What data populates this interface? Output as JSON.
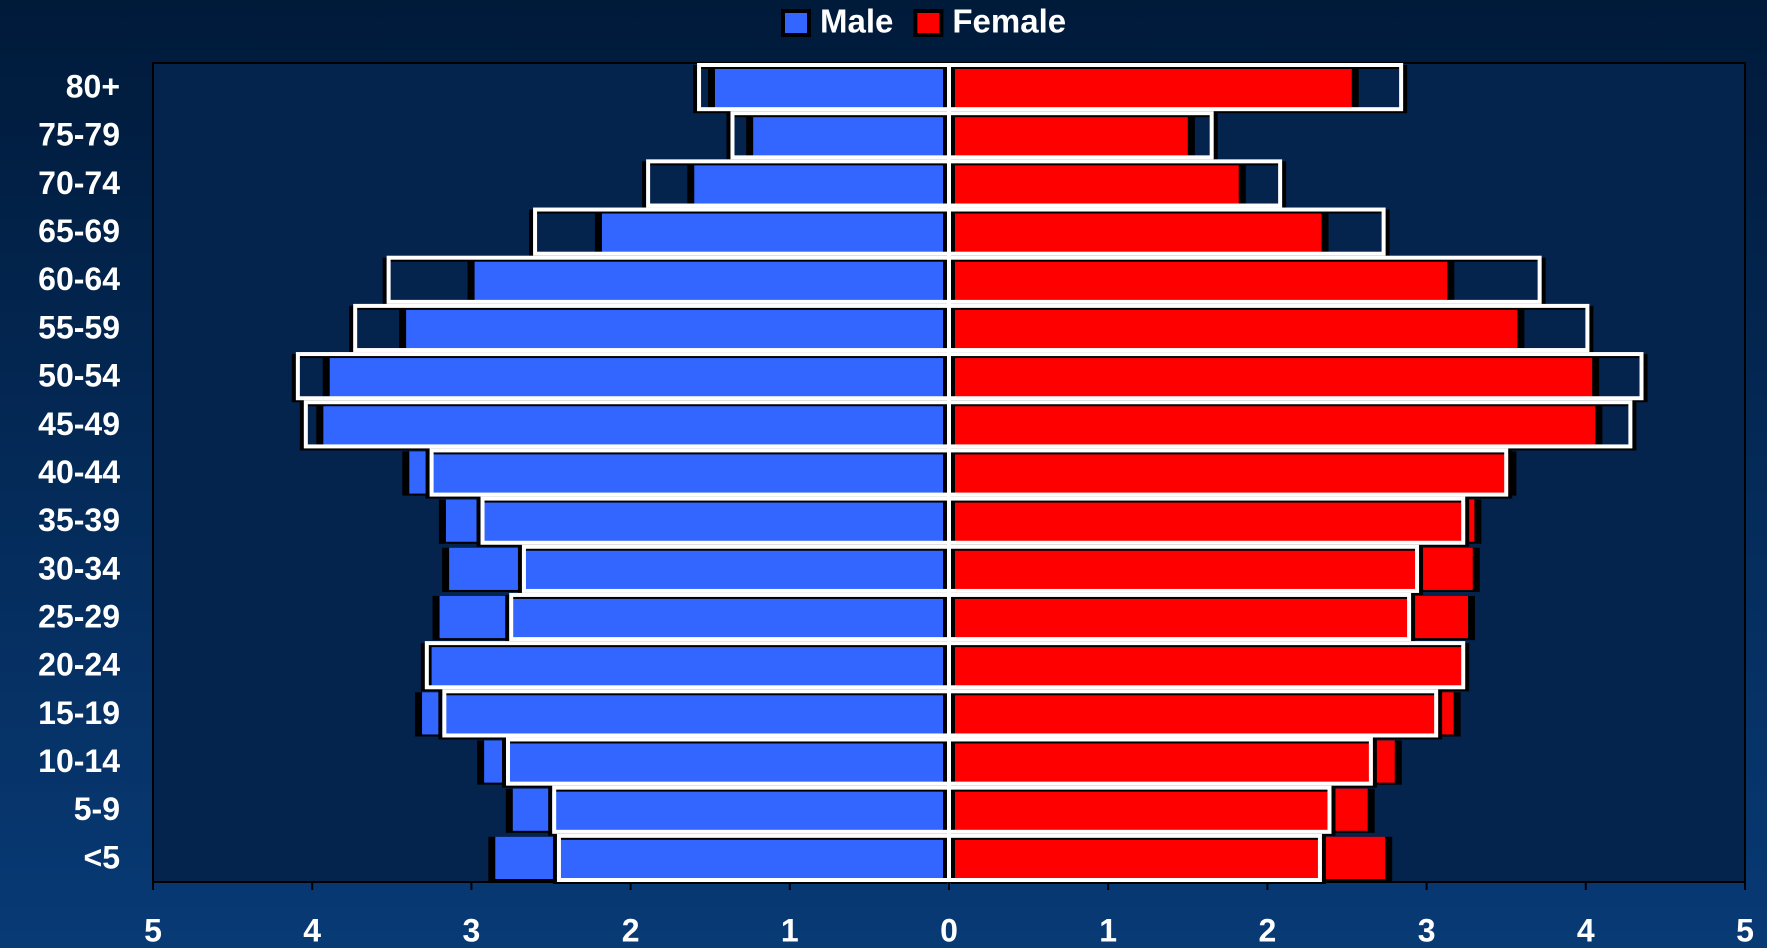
{
  "chart_data": {
    "type": "pyramid",
    "categories": [
      "80+",
      "75-79",
      "70-74",
      "65-69",
      "60-64",
      "55-59",
      "50-54",
      "45-49",
      "40-44",
      "35-39",
      "30-34",
      "25-29",
      "20-24",
      "15-19",
      "10-14",
      "5-9",
      "<5"
    ],
    "series": [
      {
        "name": "Male",
        "color": "#3366ff",
        "side": "left",
        "values": [
          1.47,
          1.23,
          1.6,
          2.18,
          2.98,
          3.41,
          3.89,
          3.93,
          3.39,
          3.16,
          3.14,
          3.2,
          3.25,
          3.31,
          2.92,
          2.74,
          2.85
        ],
        "outline_values": [
          1.57,
          1.36,
          1.89,
          2.6,
          3.52,
          3.73,
          4.09,
          4.04,
          3.25,
          2.93,
          2.67,
          2.75,
          3.28,
          3.17,
          2.77,
          2.48,
          2.45
        ]
      },
      {
        "name": "Female",
        "color": "#ff0000",
        "side": "right",
        "values": [
          2.53,
          1.5,
          1.82,
          2.34,
          3.13,
          3.57,
          4.04,
          4.06,
          3.52,
          3.3,
          3.29,
          3.26,
          3.22,
          3.17,
          2.8,
          2.63,
          2.74
        ],
        "outline_values": [
          2.84,
          1.65,
          2.08,
          2.73,
          3.71,
          4.01,
          4.35,
          4.28,
          3.5,
          3.23,
          2.94,
          2.89,
          3.23,
          3.06,
          2.65,
          2.39,
          2.33
        ]
      }
    ],
    "xlim": [
      -5,
      5
    ],
    "xticks": [
      {
        "value": -5,
        "label": "5"
      },
      {
        "value": -4,
        "label": "4"
      },
      {
        "value": -3,
        "label": "3"
      },
      {
        "value": -2,
        "label": "2"
      },
      {
        "value": -1,
        "label": "1"
      },
      0,
      1,
      2,
      3,
      4,
      5
    ],
    "legend": "top"
  }
}
